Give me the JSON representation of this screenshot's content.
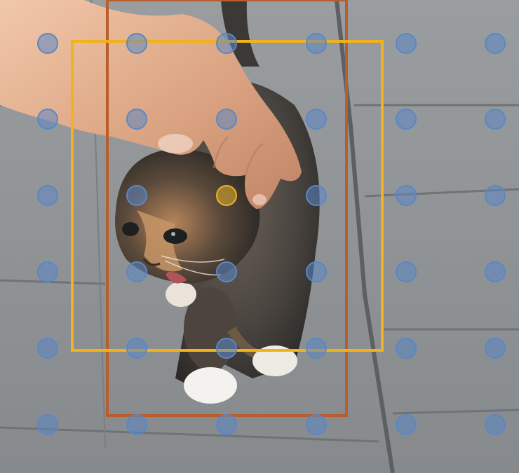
{
  "photo": {
    "subject": "kitten",
    "hand": "human-hand",
    "ground": "paving-slabs"
  },
  "overlay": {
    "grid_points": {
      "rows": 6,
      "cols": 6,
      "color": "#5b87c4",
      "highlight_color": "#e8b42a",
      "highlight_index": [
        2,
        2
      ]
    },
    "boxes": [
      {
        "name": "orange-box",
        "color": "#f2b21a"
      },
      {
        "name": "brown-box",
        "color": "#b85e2c"
      }
    ]
  }
}
